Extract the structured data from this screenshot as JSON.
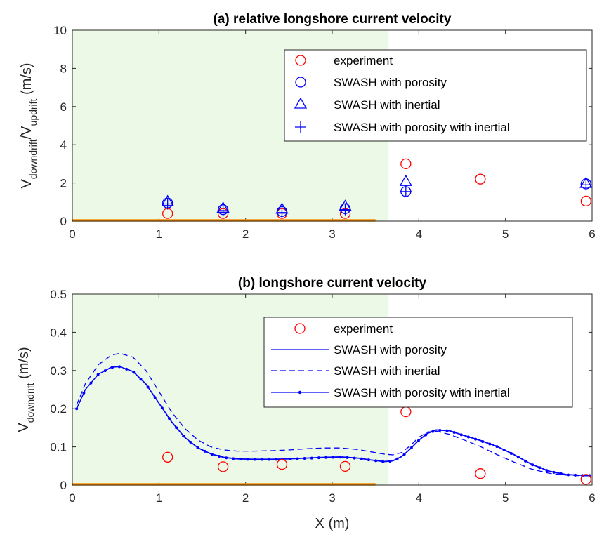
{
  "chart_data": [
    {
      "type": "scatter",
      "title": "(a) relative longshore current velocity",
      "ylabel_main": "V",
      "ylabel_sub1": "downdrift",
      "ylabel_mid": "/V",
      "ylabel_sub2": "updrift",
      "ylabel_units": " (m/s)",
      "xlim": [
        0,
        6
      ],
      "ylim": [
        0,
        10
      ],
      "xticks": [
        "0",
        "1",
        "2",
        "3",
        "4",
        "5",
        "6"
      ],
      "yticks": [
        "0",
        "2",
        "4",
        "6",
        "8",
        "10"
      ],
      "shaded_x_range": [
        0,
        3.65
      ],
      "bar_x_range": [
        0,
        3.5
      ],
      "legend_position": "top-right",
      "series": [
        {
          "name": "experiment",
          "marker": "circle",
          "color": "#ff0000",
          "x": [
            1.1,
            1.74,
            2.42,
            3.15,
            3.85,
            4.71,
            5.93
          ],
          "y": [
            0.4,
            0.4,
            0.4,
            0.4,
            3.0,
            2.2,
            1.05
          ]
        },
        {
          "name": "SWASH with porosity",
          "marker": "circle",
          "color": "#0000ff",
          "x": [
            1.1,
            1.74,
            2.42,
            3.15,
            3.85,
            5.93
          ],
          "y": [
            0.95,
            0.6,
            0.5,
            0.65,
            1.55,
            1.95
          ]
        },
        {
          "name": "SWASH with inertial",
          "marker": "triangle",
          "color": "#0000ff",
          "x": [
            1.1,
            1.74,
            2.42,
            3.15,
            3.85,
            5.93
          ],
          "y": [
            1.0,
            0.65,
            0.6,
            0.75,
            2.05,
            1.95
          ]
        },
        {
          "name": "SWASH with porosity with inertial",
          "marker": "plus",
          "color": "#0000ff",
          "x": [
            1.1,
            1.74,
            2.42,
            3.15,
            3.85,
            5.93
          ],
          "y": [
            0.9,
            0.55,
            0.45,
            0.6,
            1.55,
            1.9
          ]
        }
      ]
    },
    {
      "type": "line",
      "title": "(b) longshore current velocity",
      "ylabel_main": "V",
      "ylabel_sub1": "downdrift",
      "ylabel_units": " (m/s)",
      "xlabel": "X (m)",
      "xlim": [
        0,
        6
      ],
      "ylim": [
        0,
        0.5
      ],
      "xticks": [
        "0",
        "1",
        "2",
        "3",
        "4",
        "5",
        "6"
      ],
      "yticks": [
        "0",
        "0.1",
        "0.2",
        "0.3",
        "0.4",
        "0.5"
      ],
      "shaded_x_range": [
        0,
        3.65
      ],
      "bar_x_range": [
        0,
        3.5
      ],
      "legend_position": "top-right",
      "x": [
        0.05,
        0.15,
        0.3,
        0.45,
        0.55,
        0.7,
        0.85,
        1.0,
        1.15,
        1.3,
        1.45,
        1.6,
        1.75,
        1.9,
        2.1,
        2.3,
        2.5,
        2.7,
        2.9,
        3.1,
        3.3,
        3.45,
        3.6,
        3.7,
        3.8,
        3.9,
        4.0,
        4.1,
        4.2,
        4.35,
        4.5,
        4.7,
        4.9,
        5.1,
        5.3,
        5.5,
        5.7,
        5.9,
        5.97
      ],
      "series": [
        {
          "name": "experiment",
          "style": "circle",
          "color": "#ff0000",
          "x": [
            1.1,
            1.74,
            2.42,
            3.15,
            3.85,
            4.71,
            5.93
          ],
          "y": [
            0.073,
            0.048,
            0.054,
            0.049,
            0.192,
            0.03,
            0.015
          ]
        },
        {
          "name": "SWASH with porosity",
          "style": "solid",
          "color": "#0000ff",
          "y": [
            0.2,
            0.25,
            0.29,
            0.309,
            0.31,
            0.298,
            0.265,
            0.215,
            0.165,
            0.125,
            0.098,
            0.082,
            0.073,
            0.069,
            0.068,
            0.068,
            0.069,
            0.071,
            0.073,
            0.074,
            0.071,
            0.066,
            0.062,
            0.064,
            0.075,
            0.095,
            0.118,
            0.136,
            0.145,
            0.143,
            0.132,
            0.118,
            0.102,
            0.08,
            0.055,
            0.037,
            0.028,
            0.026,
            0.026
          ]
        },
        {
          "name": "SWASH with inertial",
          "style": "dashed",
          "color": "#0000ff",
          "y": [
            0.21,
            0.265,
            0.315,
            0.34,
            0.345,
            0.335,
            0.3,
            0.245,
            0.19,
            0.148,
            0.118,
            0.1,
            0.092,
            0.089,
            0.089,
            0.09,
            0.092,
            0.095,
            0.097,
            0.097,
            0.093,
            0.087,
            0.081,
            0.079,
            0.085,
            0.103,
            0.125,
            0.139,
            0.141,
            0.133,
            0.12,
            0.102,
            0.08,
            0.06,
            0.042,
            0.031,
            0.026,
            0.024,
            0.024
          ]
        },
        {
          "name": "SWASH with porosity with inertial",
          "style": "solid-dots",
          "color": "#0000ff",
          "y": [
            0.2,
            0.25,
            0.29,
            0.308,
            0.31,
            0.297,
            0.264,
            0.214,
            0.164,
            0.124,
            0.097,
            0.081,
            0.072,
            0.068,
            0.067,
            0.067,
            0.068,
            0.07,
            0.072,
            0.073,
            0.07,
            0.065,
            0.061,
            0.063,
            0.074,
            0.094,
            0.117,
            0.135,
            0.144,
            0.142,
            0.131,
            0.117,
            0.101,
            0.079,
            0.054,
            0.036,
            0.027,
            0.025,
            0.025
          ]
        }
      ]
    }
  ],
  "colors": {
    "shade": "#ecf9e6",
    "bar": "#ff8c00",
    "red": "#ff0000",
    "blue": "#0000ff"
  }
}
